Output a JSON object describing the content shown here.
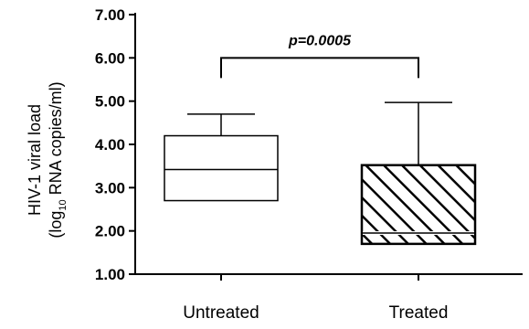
{
  "chart_data": {
    "type": "box",
    "ylabel_line1": "HIV-1 viral load",
    "ylabel_line2_pre": "(log",
    "ylabel_line2_sub": "10",
    "ylabel_line2_post": " RNA copies/ml)",
    "ylim": [
      1.0,
      7.0
    ],
    "yticks": [
      "1.00",
      "2.00",
      "3.00",
      "4.00",
      "5.00",
      "6.00",
      "7.00"
    ],
    "categories": [
      "Untreated",
      "Treated"
    ],
    "boxes": [
      {
        "category": "Untreated",
        "min": 2.7,
        "q1": 2.7,
        "median": 3.42,
        "q3": 4.2,
        "max": 4.7,
        "fill": "none"
      },
      {
        "category": "Treated",
        "min": 1.7,
        "q1": 1.7,
        "median": 1.95,
        "q3": 3.52,
        "max": 4.97,
        "fill": "hatched"
      }
    ],
    "annotation": {
      "text": "p=0.0005",
      "bracket_y": 6.0
    }
  }
}
